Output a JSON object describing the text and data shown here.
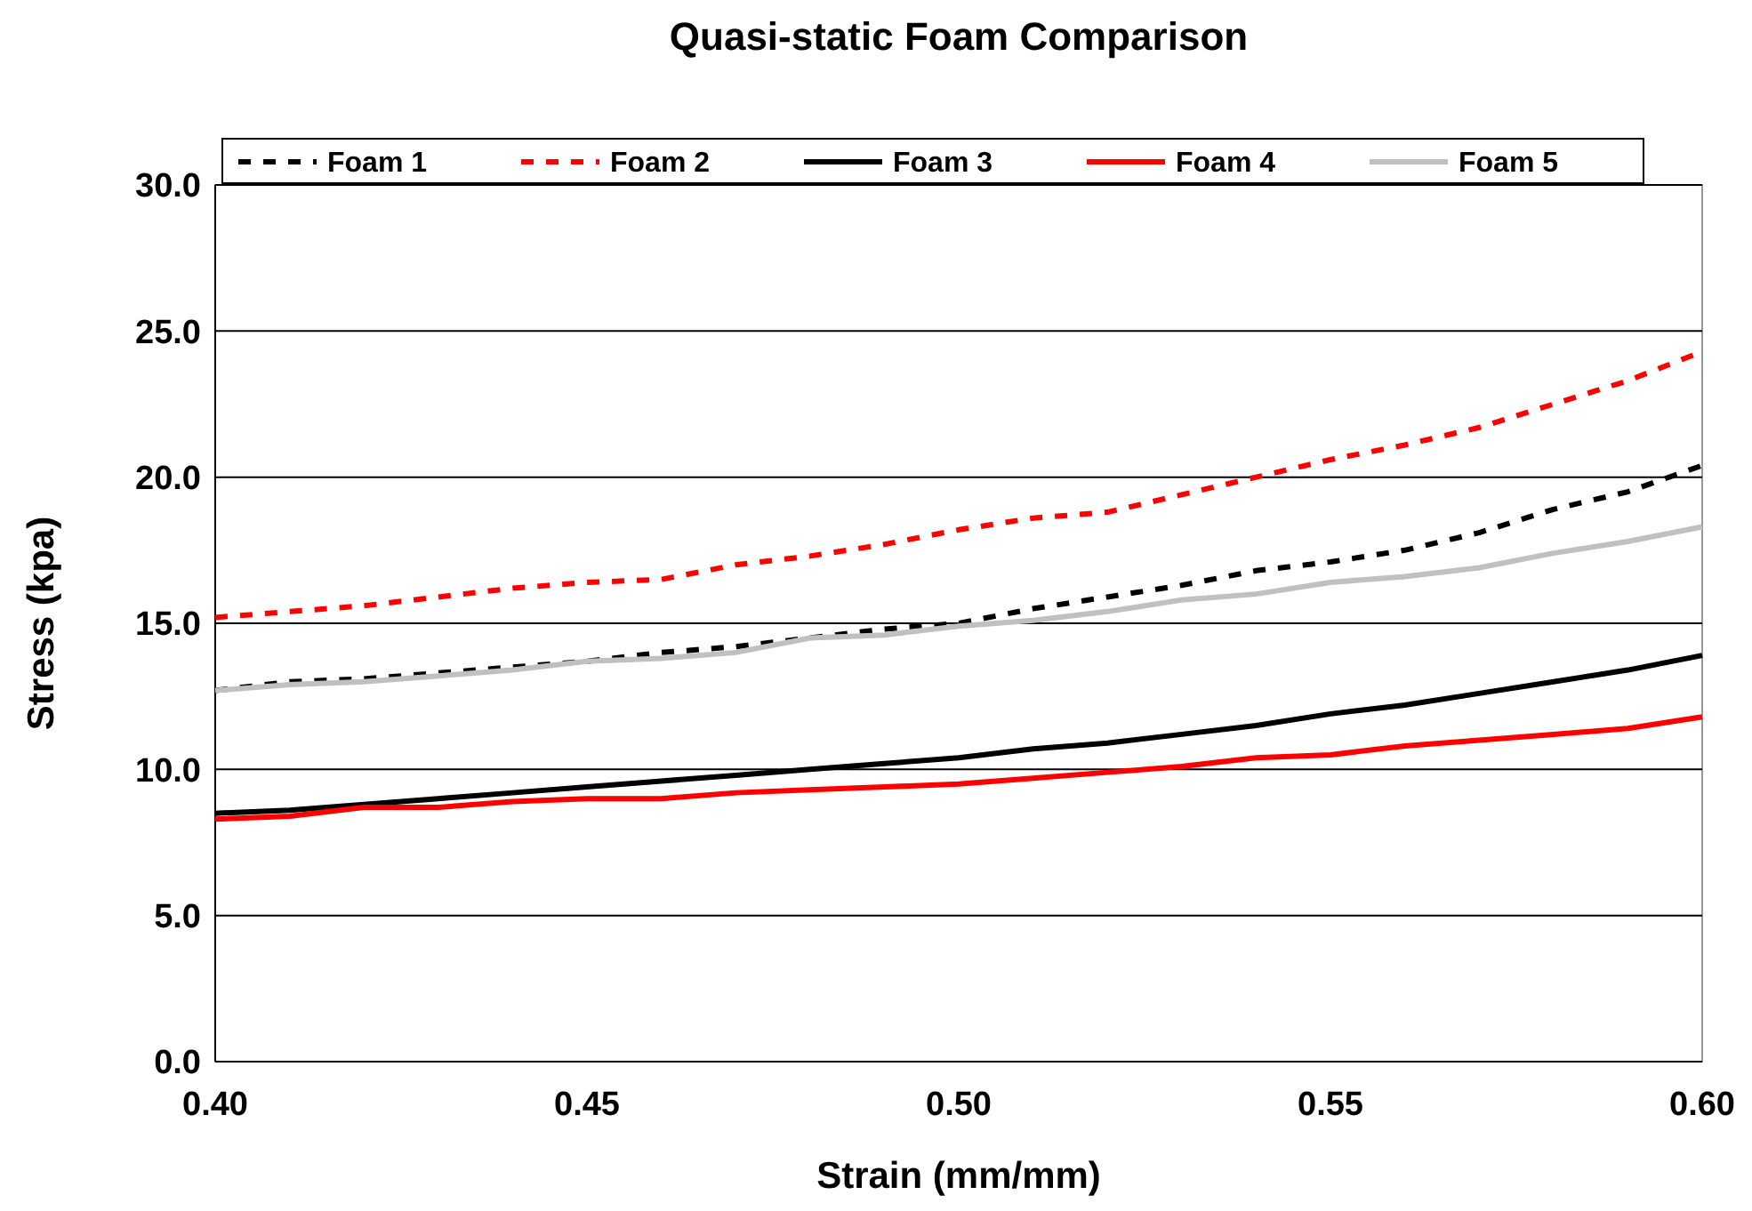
{
  "chart_data": {
    "type": "line",
    "title": "Quasi-static Foam Comparison",
    "xlabel": "Strain (mm/mm)",
    "ylabel": "Stress (kpa)",
    "x": [
      0.4,
      0.41,
      0.42,
      0.43,
      0.44,
      0.45,
      0.46,
      0.47,
      0.48,
      0.49,
      0.5,
      0.51,
      0.52,
      0.53,
      0.54,
      0.55,
      0.56,
      0.57,
      0.58,
      0.59,
      0.6
    ],
    "series": [
      {
        "name": "Foam 1",
        "color": "#000000",
        "line_style": "dashed",
        "values": [
          12.7,
          13.0,
          13.1,
          13.3,
          13.5,
          13.7,
          14.0,
          14.2,
          14.5,
          14.8,
          15.0,
          15.5,
          15.9,
          16.3,
          16.8,
          17.1,
          17.5,
          18.1,
          18.9,
          19.5,
          20.4
        ]
      },
      {
        "name": "Foam 2",
        "color": "#ff0000",
        "line_style": "dashed",
        "values": [
          15.2,
          15.4,
          15.6,
          15.9,
          16.2,
          16.4,
          16.5,
          17.0,
          17.3,
          17.7,
          18.2,
          18.6,
          18.8,
          19.4,
          20.0,
          20.6,
          21.1,
          21.7,
          22.5,
          23.3,
          24.3
        ]
      },
      {
        "name": "Foam 3",
        "color": "#000000",
        "line_style": "solid",
        "values": [
          8.5,
          8.6,
          8.8,
          9.0,
          9.2,
          9.4,
          9.6,
          9.8,
          10.0,
          10.2,
          10.4,
          10.7,
          10.9,
          11.2,
          11.5,
          11.9,
          12.2,
          12.6,
          13.0,
          13.4,
          13.9
        ]
      },
      {
        "name": "Foam 4",
        "color": "#ff0000",
        "line_style": "solid",
        "values": [
          8.3,
          8.4,
          8.7,
          8.7,
          8.9,
          9.0,
          9.0,
          9.2,
          9.3,
          9.4,
          9.5,
          9.7,
          9.9,
          10.1,
          10.4,
          10.5,
          10.8,
          11.0,
          11.2,
          11.4,
          11.8
        ]
      },
      {
        "name": "Foam 5",
        "color": "#c0c0c0",
        "line_style": "solid",
        "values": [
          12.7,
          12.9,
          13.0,
          13.2,
          13.4,
          13.7,
          13.8,
          14.0,
          14.5,
          14.6,
          14.9,
          15.1,
          15.4,
          15.8,
          16.0,
          16.4,
          16.6,
          16.9,
          17.4,
          17.8,
          18.3
        ]
      }
    ],
    "xlim": [
      0.4,
      0.6
    ],
    "xticks": [
      {
        "value": 0.4,
        "label": "0.40"
      },
      {
        "value": 0.45,
        "label": "0.45"
      },
      {
        "value": 0.5,
        "label": "0.50"
      },
      {
        "value": 0.55,
        "label": "0.55"
      },
      {
        "value": 0.6,
        "label": "0.60"
      }
    ],
    "ylim": [
      0,
      30
    ],
    "yticks": [
      {
        "value": 0,
        "label": "0.0"
      },
      {
        "value": 5,
        "label": "5.0"
      },
      {
        "value": 10,
        "label": "10.0"
      },
      {
        "value": 15,
        "label": "15.0"
      },
      {
        "value": 20,
        "label": "20.0"
      },
      {
        "value": 25,
        "label": "25.0"
      },
      {
        "value": 30,
        "label": "30.0"
      }
    ],
    "grid": "y",
    "legend": "top"
  }
}
